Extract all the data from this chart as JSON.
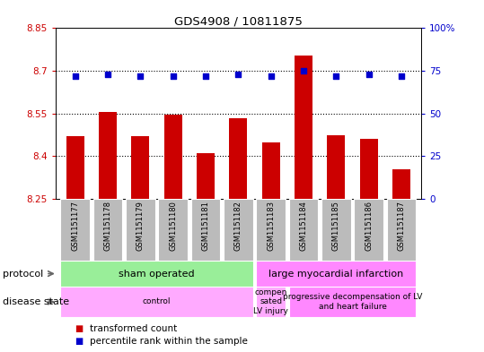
{
  "title": "GDS4908 / 10811875",
  "samples": [
    "GSM1151177",
    "GSM1151178",
    "GSM1151179",
    "GSM1151180",
    "GSM1151181",
    "GSM1151182",
    "GSM1151183",
    "GSM1151184",
    "GSM1151185",
    "GSM1151186",
    "GSM1151187"
  ],
  "bar_values": [
    8.47,
    8.555,
    8.47,
    8.545,
    8.41,
    8.535,
    8.45,
    8.755,
    8.475,
    8.46,
    8.355
  ],
  "percentile_values": [
    72,
    73,
    72,
    72,
    72,
    73,
    72,
    75,
    72,
    73,
    72
  ],
  "bar_color": "#cc0000",
  "percentile_color": "#0000cc",
  "ylim_left": [
    8.25,
    8.85
  ],
  "ylim_right": [
    0,
    100
  ],
  "yticks_left": [
    8.25,
    8.4,
    8.55,
    8.7,
    8.85
  ],
  "yticks_right": [
    0,
    25,
    50,
    75,
    100
  ],
  "ytick_labels_right": [
    "0",
    "25",
    "50",
    "75",
    "100%"
  ],
  "hlines": [
    8.4,
    8.55,
    8.7
  ],
  "bar_bottom": 8.25,
  "proto_groups": [
    {
      "text": "sham operated",
      "start": 0,
      "end": 5,
      "color": "#99ee99"
    },
    {
      "text": "large myocardial infarction",
      "start": 6,
      "end": 10,
      "color": "#ff88ff"
    }
  ],
  "disease_groups": [
    {
      "text": "control",
      "start": 0,
      "end": 5,
      "color": "#ffaaff"
    },
    {
      "text": "compen\nsated\nLV injury",
      "start": 6,
      "end": 6,
      "color": "#ffaaff"
    },
    {
      "text": "progressive decompensation of LV\nand heart failure",
      "start": 7,
      "end": 10,
      "color": "#ff88ff"
    }
  ],
  "legend_bar_label": "transformed count",
  "legend_pct_label": "percentile rank within the sample",
  "protocol_row_label": "protocol",
  "disease_row_label": "disease state",
  "sample_bg": "#bbbbbb",
  "plot_bg": "#ffffff"
}
